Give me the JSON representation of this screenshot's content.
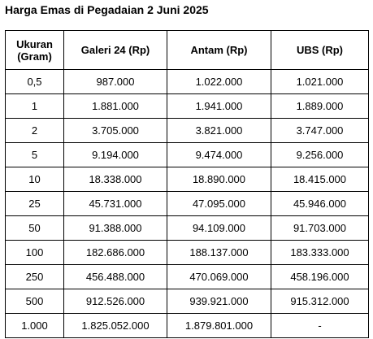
{
  "title": "Harga Emas di Pegadaian 2 Juni 2025",
  "table": {
    "headers": {
      "size_line1": "Ukuran",
      "size_line2": "(Gram)",
      "galeri24": "Galeri 24 (Rp)",
      "antam": "Antam (Rp)",
      "ubs": "UBS (Rp)"
    },
    "rows": [
      {
        "size": "0,5",
        "galeri24": "987.000",
        "antam": "1.022.000",
        "ubs": "1.021.000"
      },
      {
        "size": "1",
        "galeri24": "1.881.000",
        "antam": "1.941.000",
        "ubs": "1.889.000"
      },
      {
        "size": "2",
        "galeri24": "3.705.000",
        "antam": "3.821.000",
        "ubs": "3.747.000"
      },
      {
        "size": "5",
        "galeri24": "9.194.000",
        "antam": "9.474.000",
        "ubs": "9.256.000"
      },
      {
        "size": "10",
        "galeri24": "18.338.000",
        "antam": "18.890.000",
        "ubs": "18.415.000"
      },
      {
        "size": "25",
        "galeri24": "45.731.000",
        "antam": "47.095.000",
        "ubs": "45.946.000"
      },
      {
        "size": "50",
        "galeri24": "91.388.000",
        "antam": "94.109.000",
        "ubs": "91.703.000"
      },
      {
        "size": "100",
        "galeri24": "182.686.000",
        "antam": "188.137.000",
        "ubs": "183.333.000"
      },
      {
        "size": "250",
        "galeri24": "456.488.000",
        "antam": "470.069.000",
        "ubs": "458.196.000"
      },
      {
        "size": "500",
        "galeri24": "912.526.000",
        "antam": "939.921.000",
        "ubs": "915.312.000"
      },
      {
        "size": "1.000",
        "galeri24": "1.825.052.000",
        "antam": "1.879.801.000",
        "ubs": "-"
      }
    ]
  }
}
